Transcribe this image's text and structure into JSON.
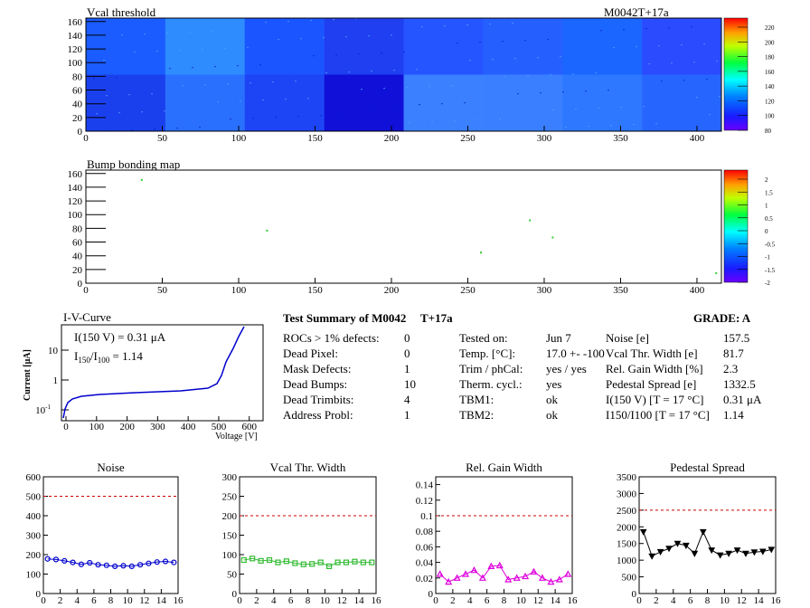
{
  "vcal_map": {
    "title": "Vcal threshold",
    "module": "M0042T+17a",
    "x_ticks": [
      "0",
      "50",
      "100",
      "150",
      "200",
      "250",
      "300",
      "350",
      "400"
    ],
    "y_ticks": [
      "0",
      "20",
      "40",
      "60",
      "80",
      "100",
      "120",
      "140",
      "160"
    ],
    "scale": [
      "220",
      "200",
      "180",
      "160",
      "140",
      "120",
      "100",
      "80"
    ]
  },
  "bump_map": {
    "title": "Bump bonding map",
    "x_ticks": [
      "0",
      "50",
      "100",
      "150",
      "200",
      "250",
      "300",
      "350",
      "400"
    ],
    "y_ticks": [
      "0",
      "20",
      "40",
      "60",
      "80",
      "100",
      "120",
      "140",
      "160"
    ],
    "scale": [
      "2",
      "1.5",
      "1",
      "0.5",
      "0",
      "-0.5",
      "-1",
      "-1.5",
      "-2"
    ],
    "dots": [
      [
        36,
        152
      ],
      [
        118,
        78
      ],
      [
        258,
        46
      ],
      [
        290,
        93
      ],
      [
        305,
        68
      ],
      [
        412,
        16
      ]
    ]
  },
  "iv": {
    "title": "I-V-Curve",
    "ylabel": "Current [μA]",
    "xlabel": "Voltage [V]",
    "annot1": "I(150 V) = 0.31 μA",
    "annot2_pre": "I",
    "annot2_sub1": "150",
    "annot2_mid": "/I",
    "annot2_sub2": "100",
    "annot2_post": " =  1.14",
    "x_ticks": [
      "0",
      "100",
      "200",
      "300",
      "400",
      "500",
      "600"
    ],
    "y_ticks": [
      "10",
      "1",
      "10"
    ],
    "y_exp": "-1"
  },
  "summary": {
    "title": "Test Summary of M0042",
    "temp": "T+17a",
    "grade": "GRADE:  A",
    "col1": [
      {
        "label": "ROCs > 1% defects:",
        "value": "0"
      },
      {
        "label": "Dead Pixel:",
        "value": "0"
      },
      {
        "label": "Mask Defects:",
        "value": "1"
      },
      {
        "label": "Dead Bumps:",
        "value": "10"
      },
      {
        "label": "Dead Trimbits:",
        "value": "4"
      },
      {
        "label": "Address Probl:",
        "value": "1"
      }
    ],
    "col2": [
      {
        "label": "Tested on:",
        "value": "Jun 7"
      },
      {
        "label": "Temp. [°C]:",
        "value": "17.0 +- -100"
      },
      {
        "label": "Trim / phCal:",
        "value": "yes / yes"
      },
      {
        "label": "Therm. cycl.:",
        "value": "yes"
      },
      {
        "label": "TBM1:",
        "value": "ok"
      },
      {
        "label": "TBM2:",
        "value": "ok"
      }
    ],
    "col3": [
      {
        "label": "Noise [e]",
        "value": "157.5"
      },
      {
        "label": "Vcal Thr. Width [e]",
        "value": "81.7"
      },
      {
        "label": "Rel. Gain Width [%]",
        "value": "2.3"
      },
      {
        "label": "Pedestal Spread [e]",
        "value": "1332.5"
      },
      {
        "label": "I(150 V) [T = 17 °C]",
        "value": "0.31 μA"
      },
      {
        "label": "I150/I100 [T = 17 °C]",
        "value": "1.14"
      }
    ]
  },
  "chart_data": [
    {
      "type": "line",
      "title": "Noise",
      "x": [
        0,
        1,
        2,
        3,
        4,
        5,
        6,
        7,
        8,
        9,
        10,
        11,
        12,
        13,
        14,
        15
      ],
      "values": [
        178,
        175,
        168,
        160,
        150,
        158,
        148,
        145,
        140,
        143,
        140,
        148,
        155,
        162,
        165,
        160
      ],
      "ylim": [
        0,
        600
      ],
      "y_ticks": [
        0,
        100,
        200,
        300,
        400,
        500,
        600
      ],
      "threshold": 500,
      "color": "#0000cc",
      "marker": "circle"
    },
    {
      "type": "line",
      "title": "Vcal Thr. Width",
      "x": [
        0,
        1,
        2,
        3,
        4,
        5,
        6,
        7,
        8,
        9,
        10,
        11,
        12,
        13,
        14,
        15
      ],
      "values": [
        86,
        90,
        84,
        86,
        80,
        83,
        78,
        75,
        76,
        80,
        70,
        80,
        80,
        82,
        80,
        80
      ],
      "ylim": [
        0,
        300
      ],
      "y_ticks": [
        0,
        50,
        100,
        150,
        200,
        250,
        300
      ],
      "threshold": 200,
      "color": "#33bb33",
      "marker": "square"
    },
    {
      "type": "line",
      "title": "Rel. Gain Width",
      "x": [
        0,
        1,
        2,
        3,
        4,
        5,
        6,
        7,
        8,
        9,
        10,
        11,
        12,
        13,
        14,
        15
      ],
      "values": [
        0.025,
        0.015,
        0.02,
        0.025,
        0.03,
        0.02,
        0.035,
        0.036,
        0.018,
        0.02,
        0.022,
        0.028,
        0.02,
        0.015,
        0.018,
        0.025
      ],
      "ylim": [
        0,
        0.15
      ],
      "y_ticks": [
        0,
        0.02,
        0.04,
        0.06,
        0.08,
        0.1,
        0.12,
        0.14
      ],
      "threshold": 0.1,
      "color": "#dd00dd",
      "marker": "triangle"
    },
    {
      "type": "line",
      "title": "Pedestal Spread",
      "x": [
        0,
        1,
        2,
        3,
        4,
        5,
        6,
        7,
        8,
        9,
        10,
        11,
        12,
        13,
        14,
        15
      ],
      "values": [
        1850,
        1120,
        1250,
        1350,
        1500,
        1440,
        1200,
        1850,
        1300,
        1150,
        1200,
        1300,
        1200,
        1240,
        1260,
        1320
      ],
      "ylim": [
        0,
        3500
      ],
      "y_ticks": [
        0,
        500,
        1000,
        1500,
        2000,
        2500,
        3000,
        3500
      ],
      "threshold": 2500,
      "color": "#000000",
      "marker": "triangle-down"
    }
  ]
}
